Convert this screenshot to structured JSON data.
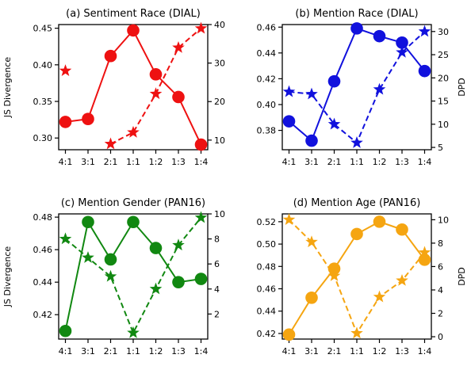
{
  "chart_data": [
    {
      "type": "line",
      "title": "(a) Sentiment Race (DIAL)",
      "xlabel": "",
      "ylabel": "JS Divergence",
      "y2label": "",
      "color": "#ee1111",
      "categories": [
        "4:1",
        "3:1",
        "2:1",
        "1:1",
        "1:2",
        "1:3",
        "1:4"
      ],
      "ylim": [
        0.284,
        0.455
      ],
      "yticks": [
        0.3,
        0.35,
        0.4,
        0.45
      ],
      "y2lim": [
        7.5,
        40
      ],
      "y2ticks": [
        10,
        20,
        30,
        40
      ],
      "series": [
        {
          "axis": "left",
          "style": "solid",
          "marker": "circle",
          "values": [
            0.322,
            0.326,
            0.412,
            0.447,
            0.387,
            0.356,
            0.291
          ]
        },
        {
          "axis": "right",
          "style": "dashed",
          "marker": "star",
          "values": [
            28.0,
            null,
            9.0,
            12.0,
            22.0,
            34.0,
            39.0
          ]
        }
      ],
      "grid": false,
      "legend": "none"
    },
    {
      "type": "line",
      "title": "(b) Mention Race (DIAL)",
      "xlabel": "",
      "ylabel": "",
      "y2label": "DPD",
      "color": "#1111dd",
      "categories": [
        "4:1",
        "3:1",
        "2:1",
        "1:1",
        "1:2",
        "1:3",
        "1:4"
      ],
      "ylim": [
        0.365,
        0.462
      ],
      "yticks": [
        0.38,
        0.4,
        0.42,
        0.44,
        0.46
      ],
      "y2lim": [
        4.5,
        31.5
      ],
      "y2ticks": [
        5,
        10,
        15,
        20,
        25,
        30
      ],
      "series": [
        {
          "axis": "left",
          "style": "solid",
          "marker": "circle",
          "values": [
            0.387,
            0.372,
            0.418,
            0.459,
            0.453,
            0.448,
            0.426
          ]
        },
        {
          "axis": "right",
          "style": "dashed",
          "marker": "star",
          "values": [
            17.0,
            16.5,
            10.0,
            6.0,
            17.5,
            25.5,
            30.0
          ]
        }
      ],
      "grid": false,
      "legend": "none"
    },
    {
      "type": "line",
      "title": "(c) Mention Gender (PAN16)",
      "xlabel": "",
      "ylabel": "JS Divergence",
      "y2label": "",
      "color": "#118811",
      "categories": [
        "4:1",
        "3:1",
        "2:1",
        "1:1",
        "1:2",
        "1:3",
        "1:4"
      ],
      "ylim": [
        0.405,
        0.482
      ],
      "yticks": [
        0.42,
        0.44,
        0.46,
        0.48
      ],
      "y2lim": [
        0,
        10
      ],
      "y2ticks": [
        2,
        4,
        6,
        8,
        10
      ],
      "series": [
        {
          "axis": "left",
          "style": "solid",
          "marker": "circle",
          "values": [
            0.41,
            0.477,
            0.454,
            0.477,
            0.461,
            0.44,
            0.442
          ]
        },
        {
          "axis": "right",
          "style": "dashed",
          "marker": "star",
          "values": [
            8.0,
            6.5,
            5.0,
            0.5,
            4.0,
            7.5,
            9.7
          ]
        }
      ],
      "grid": false,
      "legend": "none"
    },
    {
      "type": "line",
      "title": "(d) Mention Age (PAN16)",
      "xlabel": "",
      "ylabel": "",
      "y2label": "DPD",
      "color": "#f5a511",
      "categories": [
        "4:1",
        "3:1",
        "2:1",
        "1:1",
        "1:2",
        "1:3",
        "1:4"
      ],
      "ylim": [
        0.415,
        0.527
      ],
      "yticks": [
        0.42,
        0.44,
        0.46,
        0.48,
        0.5,
        0.52
      ],
      "y2lim": [
        -0.2,
        10.5
      ],
      "y2ticks": [
        0,
        2,
        4,
        6,
        8,
        10
      ],
      "series": [
        {
          "axis": "left",
          "style": "solid",
          "marker": "circle",
          "values": [
            0.419,
            0.452,
            0.478,
            0.509,
            0.52,
            0.513,
            0.486
          ]
        },
        {
          "axis": "right",
          "style": "dashed",
          "marker": "star",
          "values": [
            10.0,
            8.1,
            5.2,
            0.3,
            3.4,
            4.8,
            7.2
          ]
        }
      ],
      "grid": false,
      "legend": "none"
    }
  ]
}
